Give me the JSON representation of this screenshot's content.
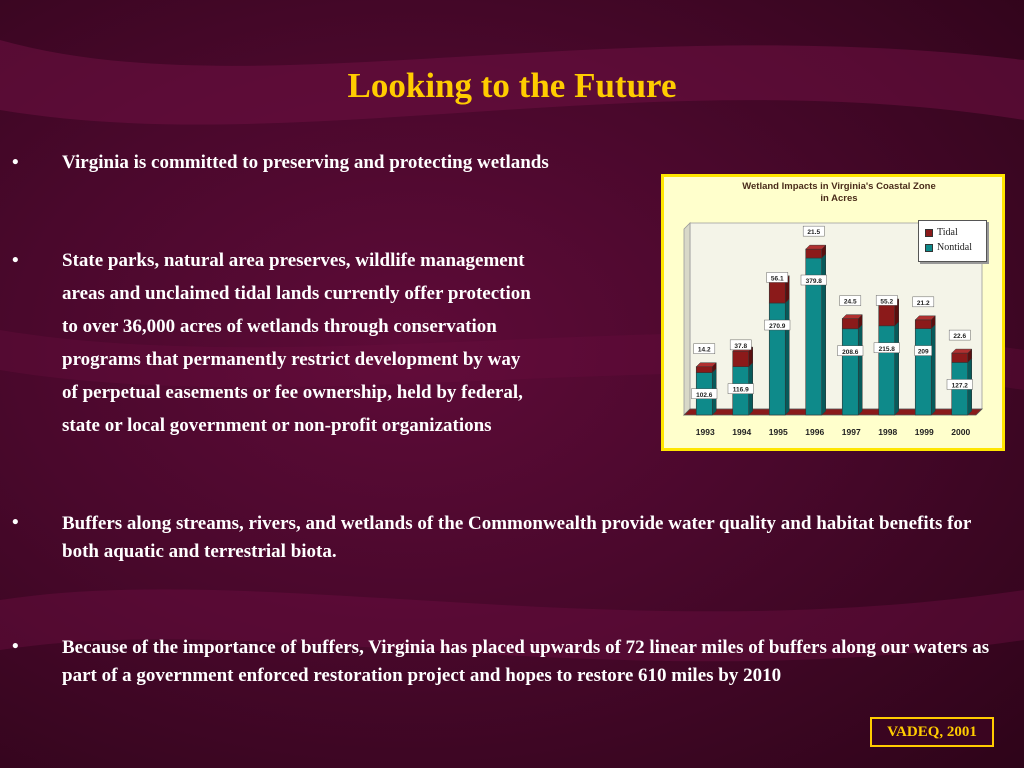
{
  "slide": {
    "title": "Looking to the Future",
    "bullet_symbol": "•",
    "bullets": [
      "Virginia is committed to preserving and protecting wetlands",
      "State parks, natural area preserves, wildlife management areas and unclaimed tidal lands currently offer protection to over 36,000 acres of wetlands through conservation programs that permanently restrict development by way of perpetual easements or fee ownership, held by federal, state or local government or non-profit organizations",
      "Buffers along streams, rivers, and wetlands of the Commonwealth provide water quality and habitat benefits for both aquatic and terrestrial biota.",
      "Because of the importance of buffers, Virginia has placed upwards of 72 linear miles of buffers along our waters as part of a government enforced restoration project and hopes to restore 610 miles by 2010"
    ],
    "bullet2_lines": [
      "State parks, natural area preserves, wildlife management",
      "areas and unclaimed tidal lands currently offer protection",
      "to over 36,000 acres of wetlands through conservation",
      "programs that permanently restrict development by way",
      "of perpetual easements or fee ownership, held by federal,",
      "state or local government or non-profit organizations"
    ],
    "credit": "VADEQ,  2001",
    "colors": {
      "background": "#4a082c",
      "title": "#ffcc00",
      "text": "#ffffff",
      "chart_frame": "#ffe600"
    }
  },
  "chart_data": {
    "type": "bar",
    "stacked": true,
    "title_lines": [
      "Wetland Impacts in Virginia's Coastal Zone",
      "in Acres"
    ],
    "categories": [
      "1993",
      "1994",
      "1995",
      "1996",
      "1997",
      "1998",
      "1999",
      "2000"
    ],
    "series": [
      {
        "name": "Nontidal",
        "color": "#0e8a8a",
        "values": [
          102.6,
          116.9,
          270.9,
          379.8,
          208.6,
          215.8,
          209,
          127.2
        ]
      },
      {
        "name": "Tidal",
        "color": "#8b1a1a",
        "values": [
          14.2,
          37.8,
          56.1,
          21.5,
          24.5,
          55.2,
          21.2,
          22.6
        ]
      }
    ],
    "legend_position": "top-right",
    "ylim": [
      0,
      450
    ],
    "grid": false
  }
}
